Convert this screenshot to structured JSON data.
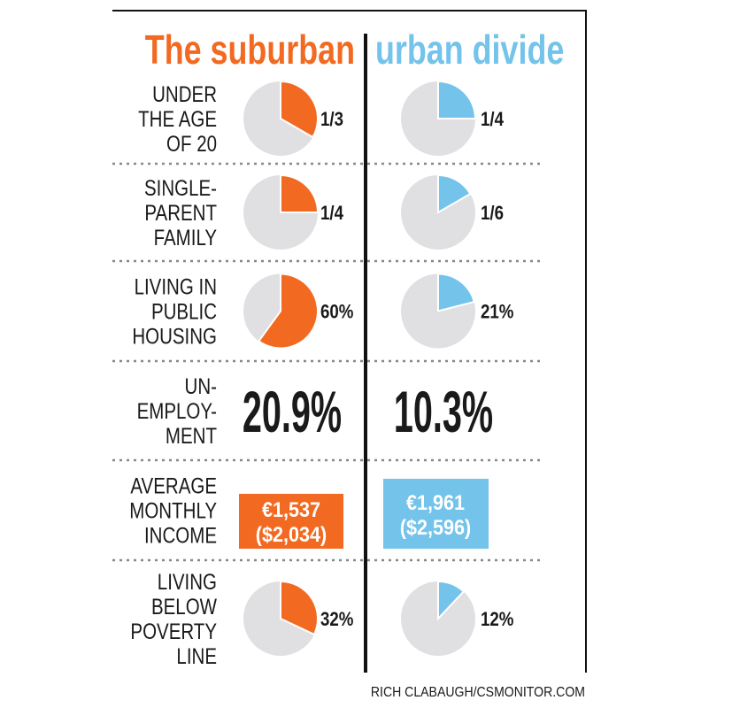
{
  "chart_data": {
    "type": "pie",
    "title_left": "The suburban",
    "title_right": "urban divide",
    "colors": {
      "suburban": "#f26a21",
      "urban": "#74c3ea",
      "remainder": "#e0e0e2"
    },
    "rows": [
      {
        "label": [
          "UNDER",
          "THE AGE",
          "OF 20"
        ],
        "kind": "pie",
        "suburban": {
          "value": 0.3333,
          "text": "1/3"
        },
        "urban": {
          "value": 0.25,
          "text": "1/4"
        }
      },
      {
        "label": [
          "SINGLE-",
          "PARENT",
          "FAMILY"
        ],
        "kind": "pie",
        "suburban": {
          "value": 0.25,
          "text": "1/4"
        },
        "urban": {
          "value": 0.1667,
          "text": "1/6"
        }
      },
      {
        "label": [
          "LIVING IN",
          "PUBLIC",
          "HOUSING"
        ],
        "kind": "pie",
        "suburban": {
          "value": 0.6,
          "text": "60%"
        },
        "urban": {
          "value": 0.21,
          "text": "21%"
        }
      },
      {
        "label": [
          "UN-",
          "EMPLOY-",
          "MENT"
        ],
        "kind": "number",
        "suburban": {
          "value": 20.9,
          "text": "20.9%"
        },
        "urban": {
          "value": 10.3,
          "text": "10.3%"
        }
      },
      {
        "label": [
          "AVERAGE",
          "MONTHLY",
          "INCOME"
        ],
        "kind": "box",
        "suburban": {
          "value": 1537,
          "text": "€1,537",
          "sub": "($2,034)"
        },
        "urban": {
          "value": 1961,
          "text": "€1,961",
          "sub": "($2,596)"
        }
      },
      {
        "label": [
          "LIVING",
          "BELOW",
          "POVERTY",
          "LINE"
        ],
        "kind": "pie",
        "suburban": {
          "value": 0.32,
          "text": "32%"
        },
        "urban": {
          "value": 0.12,
          "text": "12%"
        }
      }
    ]
  },
  "credit": "RICH CLABAUGH/CSMONITOR.COM"
}
